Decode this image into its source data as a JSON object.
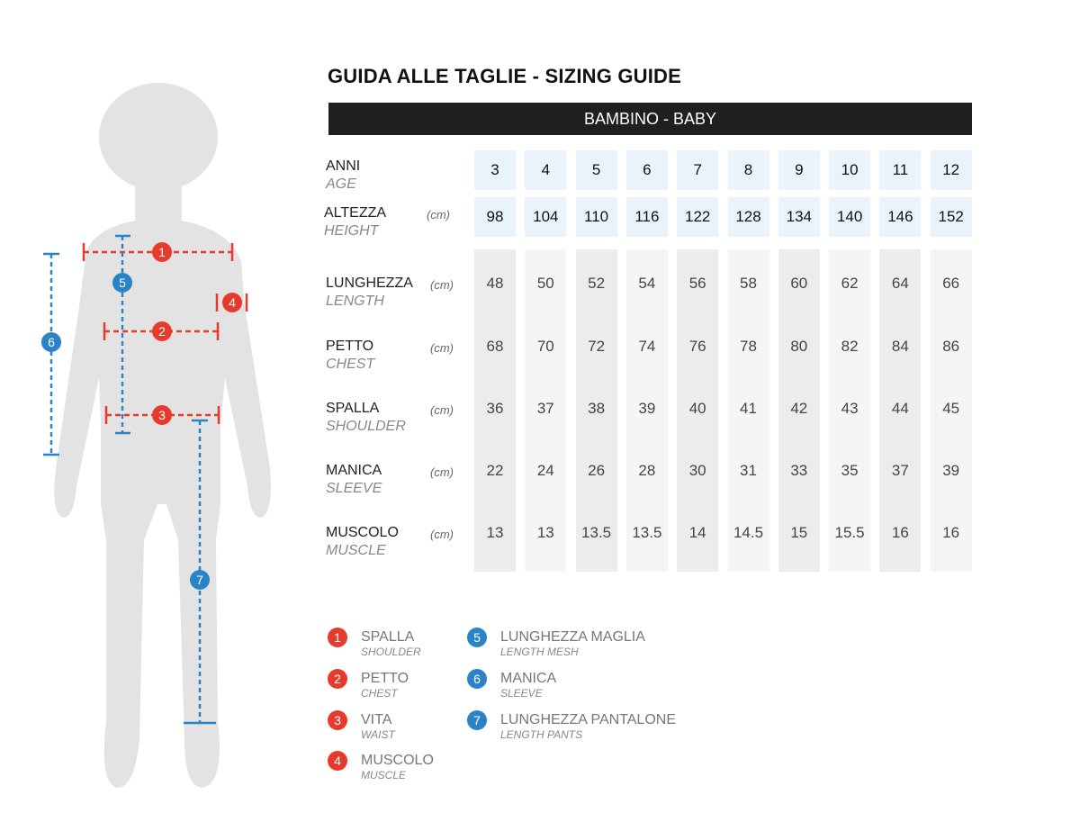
{
  "title": "GUIDA ALLE TAGLIE - SIZING GUIDE",
  "banner": "BAMBINO - BABY",
  "colors": {
    "red": "#e53a2c",
    "blue": "#2a83c6",
    "silhouette": "#e3e3e3",
    "banner": "#1f1f1f"
  },
  "header_rows": [
    {
      "label": "ANNI",
      "label_en": "AGE",
      "unit": "",
      "values": [
        "3",
        "4",
        "5",
        "6",
        "7",
        "8",
        "9",
        "10",
        "11",
        "12"
      ]
    },
    {
      "label": "ALTEZZA",
      "label_en": "HEIGHT",
      "unit": "(cm)",
      "values": [
        "98",
        "104",
        "110",
        "116",
        "122",
        "128",
        "134",
        "140",
        "146",
        "152"
      ]
    }
  ],
  "body_rows": [
    {
      "label": "LUNGHEZZA",
      "label_en": "LENGTH",
      "unit": "(cm)",
      "values": [
        "48",
        "50",
        "52",
        "54",
        "56",
        "58",
        "60",
        "62",
        "64",
        "66"
      ]
    },
    {
      "label": "PETTO",
      "label_en": "CHEST",
      "unit": "(cm)",
      "values": [
        "68",
        "70",
        "72",
        "74",
        "76",
        "78",
        "80",
        "82",
        "84",
        "86"
      ]
    },
    {
      "label": "SPALLA",
      "label_en": "SHOULDER",
      "unit": "(cm)",
      "values": [
        "36",
        "37",
        "38",
        "39",
        "40",
        "41",
        "42",
        "43",
        "44",
        "45"
      ]
    },
    {
      "label": "MANICA",
      "label_en": "SLEEVE",
      "unit": "(cm)",
      "values": [
        "22",
        "24",
        "26",
        "28",
        "30",
        "31",
        "33",
        "35",
        "37",
        "39"
      ]
    },
    {
      "label": "MUSCOLO",
      "label_en": "MUSCLE",
      "unit": "(cm)",
      "values": [
        "13",
        "13",
        "13.5",
        "13.5",
        "14",
        "14.5",
        "15",
        "15.5",
        "16",
        "16"
      ]
    }
  ],
  "legend": [
    {
      "num": "1",
      "color": "red",
      "label": "SPALLA",
      "label_en": "SHOULDER"
    },
    {
      "num": "2",
      "color": "red",
      "label": "PETTO",
      "label_en": "CHEST"
    },
    {
      "num": "3",
      "color": "red",
      "label": "VITA",
      "label_en": "WAIST"
    },
    {
      "num": "4",
      "color": "red",
      "label": "MUSCOLO",
      "label_en": "MUSCLE"
    },
    {
      "num": "5",
      "color": "blue",
      "label": "LUNGHEZZA MAGLIA",
      "label_en": "LENGTH MESH"
    },
    {
      "num": "6",
      "color": "blue",
      "label": "MANICA",
      "label_en": "SLEEVE"
    },
    {
      "num": "7",
      "color": "blue",
      "label": "LUNGHEZZA PANTALONE",
      "label_en": "LENGTH PANTS"
    }
  ]
}
